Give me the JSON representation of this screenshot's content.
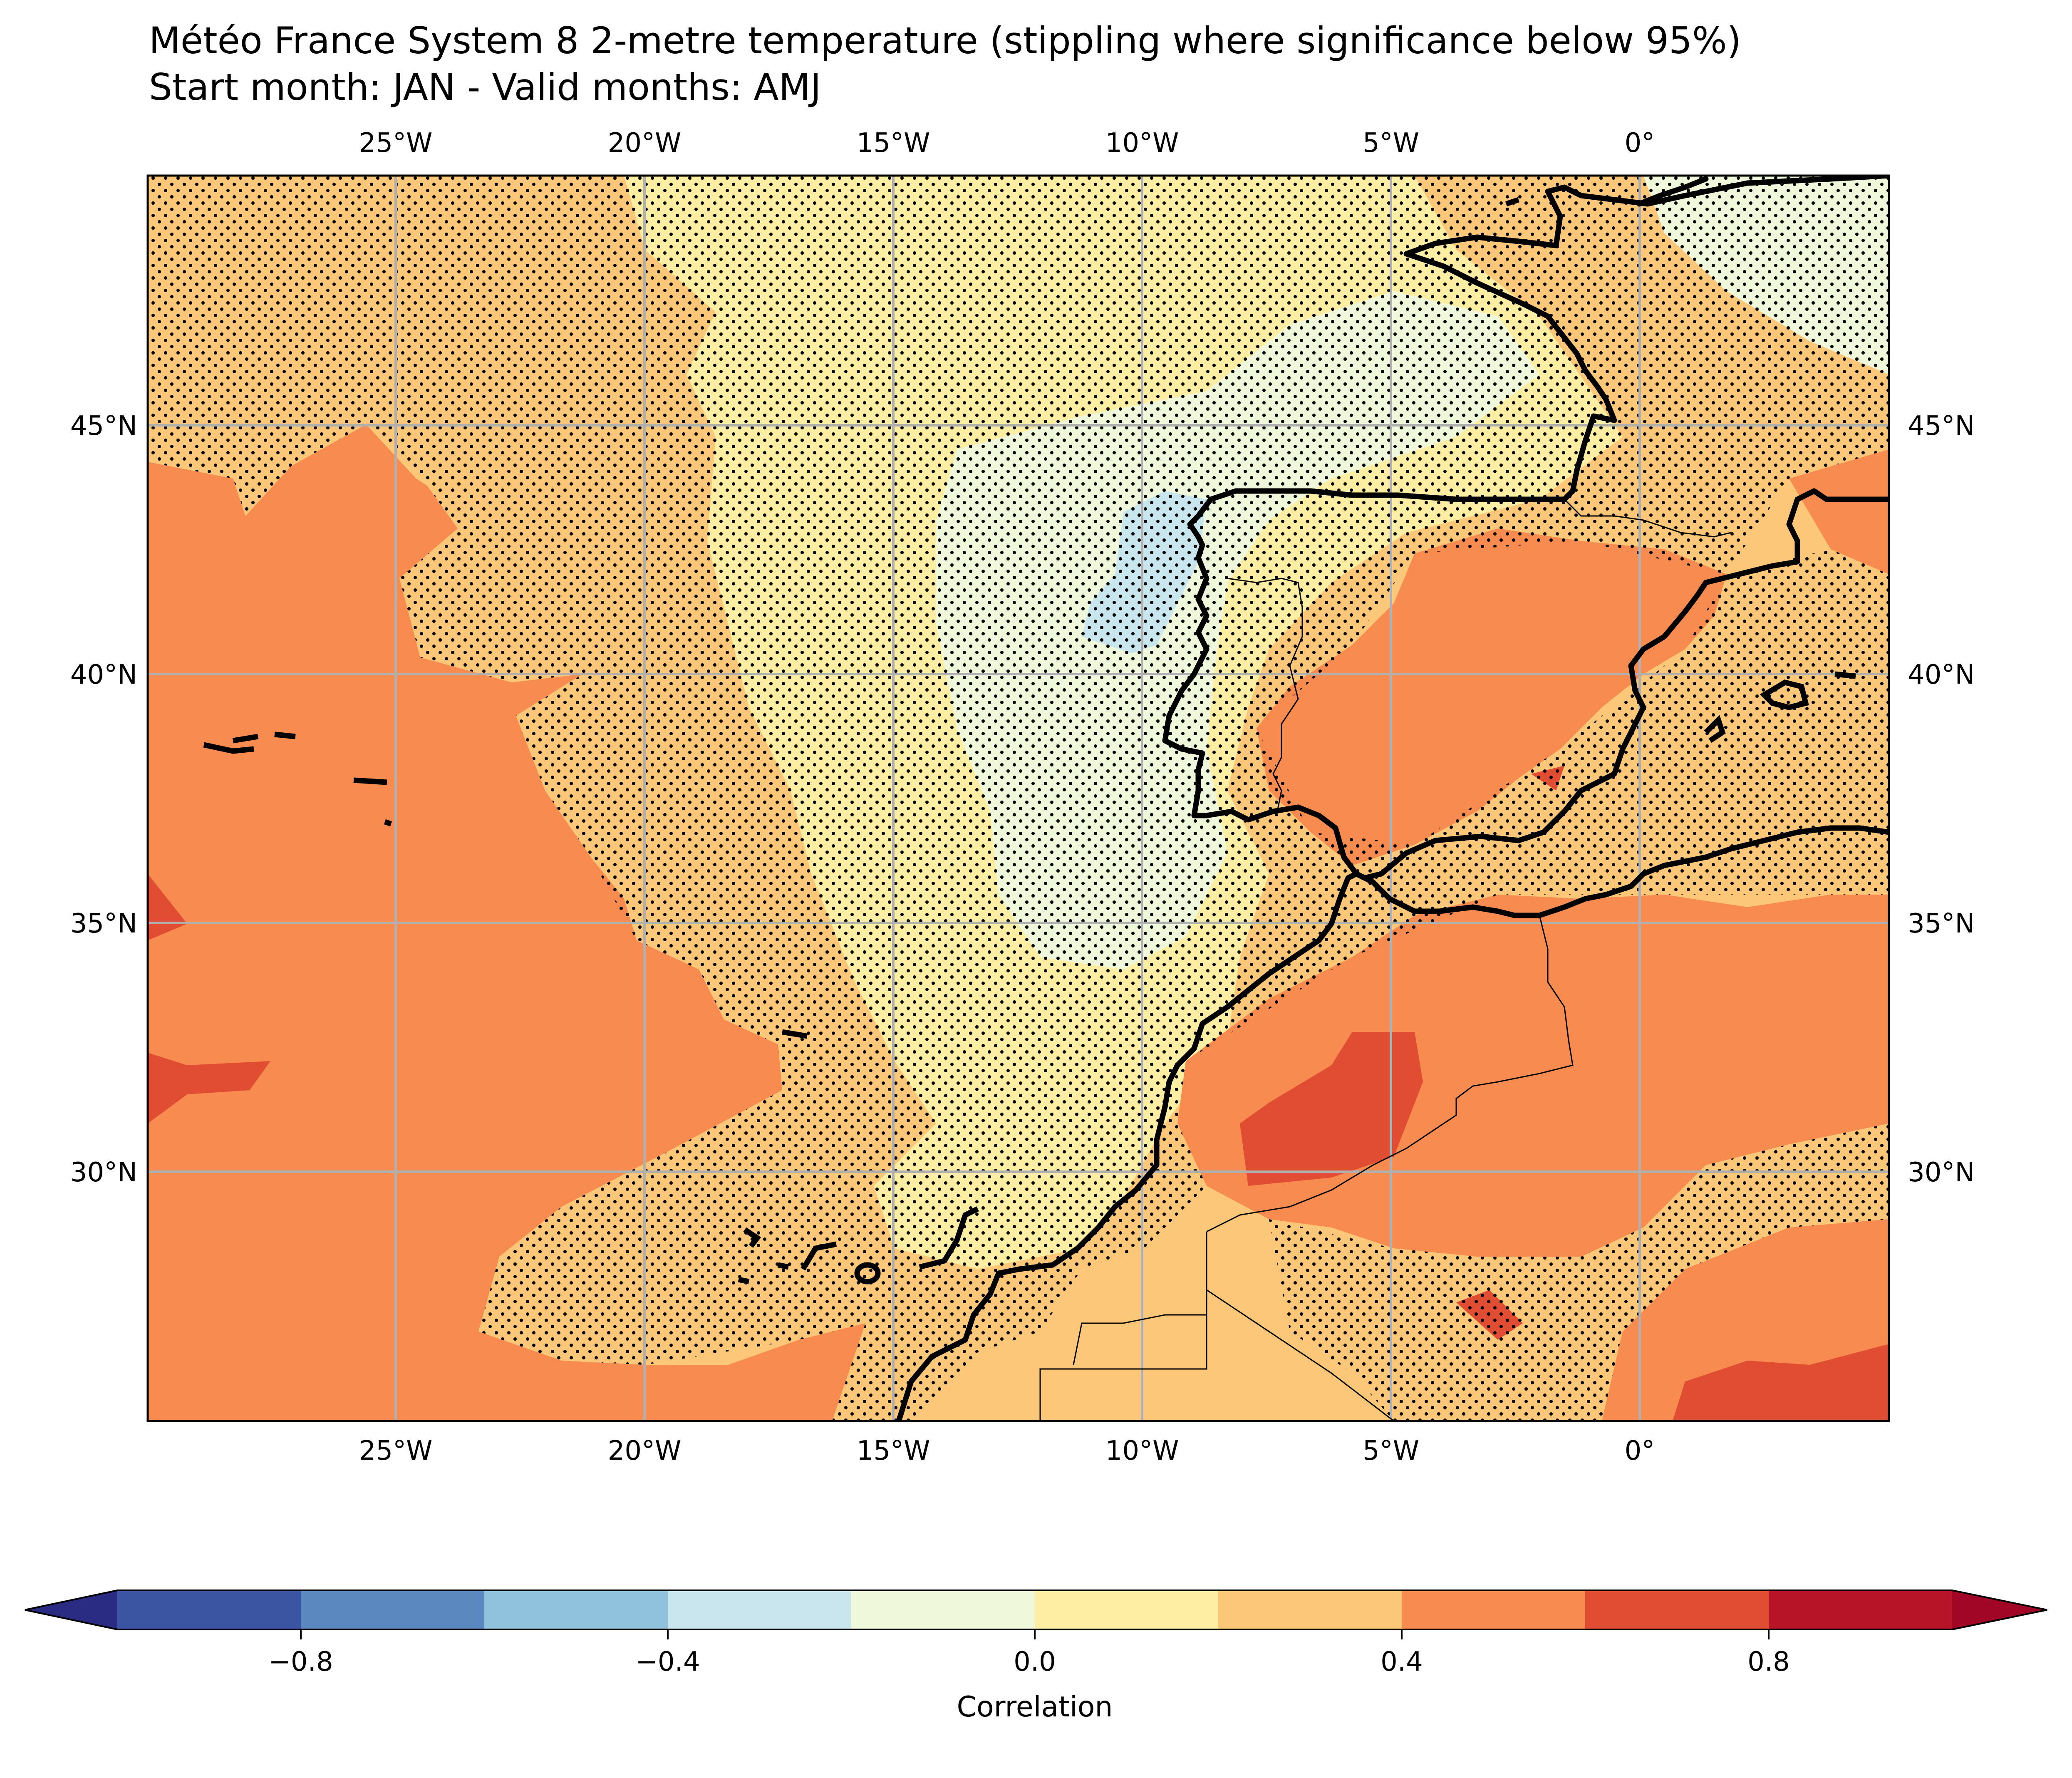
{
  "title": {
    "line1": "Météo France System 8 2-metre temperature (stippling where significance below 95%)",
    "line2": "Start month: JAN - Valid months: AMJ"
  },
  "map": {
    "extent": {
      "lon_min": -30,
      "lon_max": 5,
      "lat_min": 25,
      "lat_max": 50
    },
    "lon_ticks": [
      {
        "value": -25,
        "label": "25°W"
      },
      {
        "value": -20,
        "label": "20°W"
      },
      {
        "value": -15,
        "label": "15°W"
      },
      {
        "value": -10,
        "label": "10°W"
      },
      {
        "value": -5,
        "label": "5°W"
      },
      {
        "value": 0,
        "label": "0°"
      }
    ],
    "lat_ticks": [
      {
        "value": 45,
        "label": "45°N"
      },
      {
        "value": 40,
        "label": "40°N"
      },
      {
        "value": 35,
        "label": "35°N"
      },
      {
        "value": 30,
        "label": "30°N"
      }
    ],
    "gridlines": true,
    "stippling": "significance below 95%"
  },
  "colorbar": {
    "label": "Correlation",
    "levels": [
      -1.0,
      -0.8,
      -0.6,
      -0.4,
      -0.2,
      0.0,
      0.2,
      0.4,
      0.6,
      0.8,
      1.0
    ],
    "colors": [
      "#3b55a3",
      "#5b88be",
      "#90c1dd",
      "#c9e6ef",
      "#eff8da",
      "#fdeea3",
      "#fdc77a",
      "#f88b50",
      "#e14d33",
      "#b71427"
    ],
    "extend_colors": {
      "low": "#2a2b82",
      "high": "#a20627"
    },
    "tick_labels": [
      {
        "value": -0.8,
        "label": "−0.8"
      },
      {
        "value": -0.4,
        "label": "−0.4"
      },
      {
        "value": 0.0,
        "label": "0.0"
      },
      {
        "value": 0.4,
        "label": "0.4"
      },
      {
        "value": 0.8,
        "label": "0.8"
      }
    ]
  }
}
